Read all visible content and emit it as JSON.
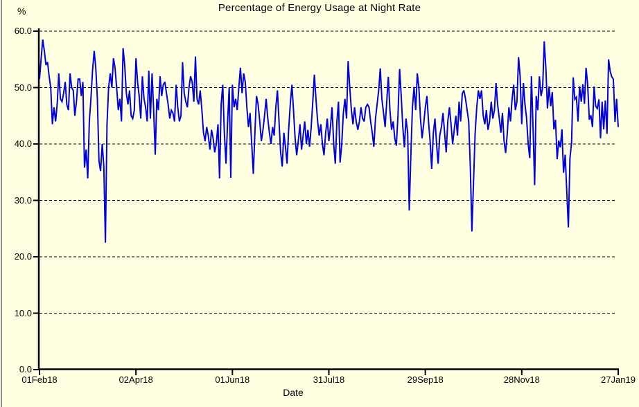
{
  "window_title": "Percentage of Energy Usage at Night Rate",
  "colors": {
    "background": "#FFFFE1",
    "line": "#0101DD",
    "axis": "#000000",
    "gridline": "#000000",
    "window_border": "#8F8F8F",
    "text": "#000000"
  },
  "chart_data": {
    "type": "line",
    "title": "Percentage of Energy Usage at Night Rate",
    "xlabel": "Date",
    "ylabel": "%",
    "grid": "horizontal dashed lines at every 10 units",
    "legend": "none",
    "ylim": [
      0,
      60
    ],
    "y_ticks": [
      0,
      10,
      20,
      30,
      40,
      50,
      60
    ],
    "y_tick_labels": [
      "0.0",
      "10.0",
      "20.0",
      "30.0",
      "40.0",
      "50.0",
      "60.0"
    ],
    "x_start_date": "01Feb18",
    "x_end_date": "27Jan19",
    "x_tick_days": [
      0,
      60,
      120,
      180,
      240,
      300,
      360
    ],
    "x_tick_labels": [
      "01Feb18",
      "02Apr18",
      "01Jun18",
      "31Jul18",
      "29Sep18",
      "28Nov18",
      "27Jan19"
    ],
    "x_unit": "day index from 01Feb18, daily data",
    "series": [
      {
        "name": "Percentage of energy usage at night rate",
        "color": "#0101DD",
        "values": [
          51.5,
          55,
          58.5,
          56.5,
          54,
          54.5,
          52,
          50,
          43.5,
          46.5,
          44,
          47,
          52.5,
          48,
          47.5,
          49,
          51,
          47,
          46,
          52.5,
          50,
          49.5,
          45,
          47.5,
          51.5,
          51.5,
          48.5,
          51,
          35.8,
          39,
          33.9,
          44,
          48,
          53,
          56.5,
          53.5,
          48,
          37,
          35.2,
          40,
          36,
          22.5,
          43.5,
          50,
          52.5,
          50,
          55.2,
          53.5,
          50,
          46,
          48,
          44,
          57,
          54,
          49,
          47,
          49.5,
          45,
          44.5,
          46,
          55.2,
          51,
          48.5,
          44.5,
          52,
          48,
          46.5,
          44,
          53,
          44.5,
          52.5,
          46,
          38.1,
          48,
          46,
          52,
          48.5,
          50.5,
          51,
          49,
          47,
          44.5,
          46,
          45.5,
          44,
          50.5,
          46.5,
          44,
          45,
          54.5,
          49,
          47.5,
          46.5,
          50,
          52,
          51,
          47.5,
          55.5,
          48,
          47,
          49.5,
          46,
          42,
          40.5,
          43,
          41.5,
          39,
          42.5,
          41,
          38.5,
          40,
          43.5,
          33.9,
          47,
          50.5,
          42,
          36.5,
          44,
          50,
          34,
          50.5,
          46.5,
          48,
          46,
          50,
          53.5,
          49,
          52.5,
          51,
          46.5,
          43,
          45.5,
          40,
          34.7,
          42,
          48.5,
          47,
          44,
          40.5,
          42.5,
          45,
          48,
          44.5,
          42,
          40,
          43,
          41.5,
          46.5,
          49.5,
          44,
          38.5,
          36,
          42,
          39.5,
          36.5,
          42.5,
          47,
          50.5,
          46,
          41,
          38,
          40.5,
          43.5,
          39,
          41.5,
          44,
          40,
          42.5,
          39.5,
          43,
          47.5,
          52.3,
          48,
          44,
          41.5,
          43.5,
          40,
          38,
          42,
          44.5,
          40.5,
          43,
          46.5,
          40,
          36.5,
          44,
          47.5,
          36.7,
          40,
          45.5,
          48,
          44.5,
          54.7,
          50,
          46,
          43.5,
          46.5,
          44,
          42.5,
          44,
          46.5,
          44.5,
          44,
          46.5,
          47,
          46.5,
          44,
          42,
          39.5,
          44.5,
          47,
          49.5,
          53.4,
          48,
          45.5,
          43,
          47.5,
          51.9,
          46,
          42.5,
          44,
          41,
          39.7,
          45,
          53.3,
          48.5,
          43,
          39.4,
          44.5,
          42,
          28.2,
          38,
          46.5,
          50.1,
          46,
          52.5,
          50,
          44.5,
          41,
          43.5,
          46.5,
          48.5,
          44,
          40.5,
          35.6,
          42,
          44.5,
          40,
          36.5,
          41.5,
          43,
          45.5,
          42,
          38.5,
          44,
          46.5,
          43.5,
          40,
          42.5,
          45,
          41.5,
          47.5,
          44,
          48.9,
          49.5,
          48,
          46,
          44,
          36,
          24.5,
          33.5,
          42,
          46.5,
          49.5,
          48,
          49.5,
          45,
          43.5,
          46,
          42.5,
          44,
          47.5,
          44.5,
          46,
          50.8,
          47,
          44.5,
          42,
          45.5,
          40.5,
          38.4,
          42,
          46.5,
          44,
          48,
          50.5,
          46,
          47.5,
          55.4,
          52,
          43.5,
          50.8,
          47,
          44.5,
          40,
          37.5,
          52,
          43,
          32.7,
          48.5,
          46,
          52,
          48.5,
          50,
          58.2,
          53.5,
          46.3,
          50.2,
          46.7,
          49.2,
          42.6,
          44.3,
          37.3,
          40.6,
          39.4,
          42.6,
          34.9,
          38.1,
          31.5,
          25.2,
          37.5,
          40.2,
          51.8,
          47.9,
          48.3,
          44,
          50.2,
          47.5,
          50.6,
          47.1,
          53.5,
          50.6,
          44.3,
          45.1,
          43,
          50.2,
          46.7,
          46.3,
          47.9,
          41,
          47.5,
          42.6,
          47.7,
          41.8,
          55,
          52.9,
          51.9,
          51.5,
          43.9,
          48,
          43
        ]
      }
    ]
  }
}
